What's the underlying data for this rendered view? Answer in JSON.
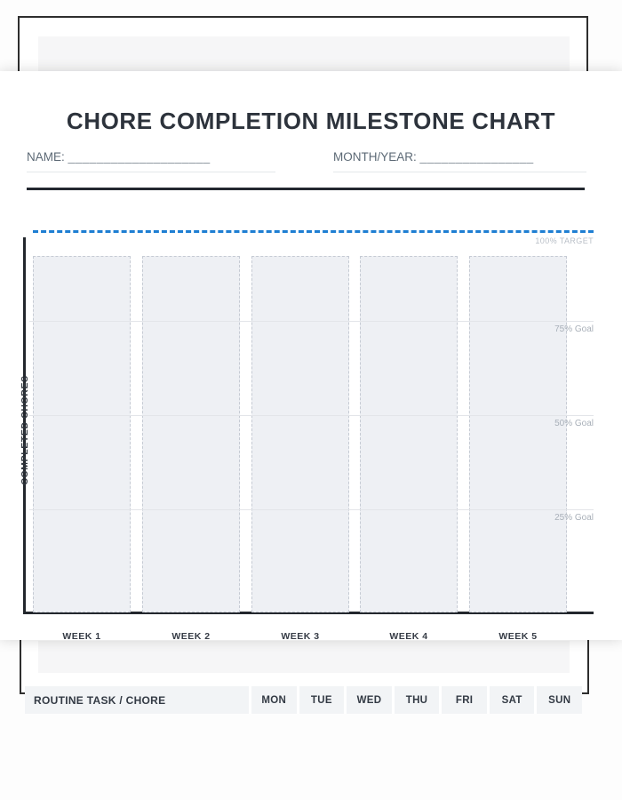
{
  "accent_color": "#1e7ed2",
  "page_title": "CHORE COMPLETION MILESTONE CHART",
  "fields": {
    "name_label": "NAME:",
    "name_blank": "____________________",
    "month_label": "MONTH/YEAR:",
    "month_blank": "________________"
  },
  "chart": {
    "target_label": "100% TARGET",
    "y_axis_label": "COMPLETED CHORES",
    "goals": [
      "75% Goal",
      "50% Goal",
      "25% Goal"
    ],
    "weeks": [
      "WEEK 1",
      "WEEK 2",
      "WEEK 3",
      "WEEK 4",
      "WEEK 5"
    ]
  },
  "table": {
    "task_column": "ROUTINE TASK / CHORE",
    "day_columns": [
      "MON",
      "TUE",
      "WED",
      "THU",
      "FRI",
      "SAT",
      "SUN"
    ]
  }
}
